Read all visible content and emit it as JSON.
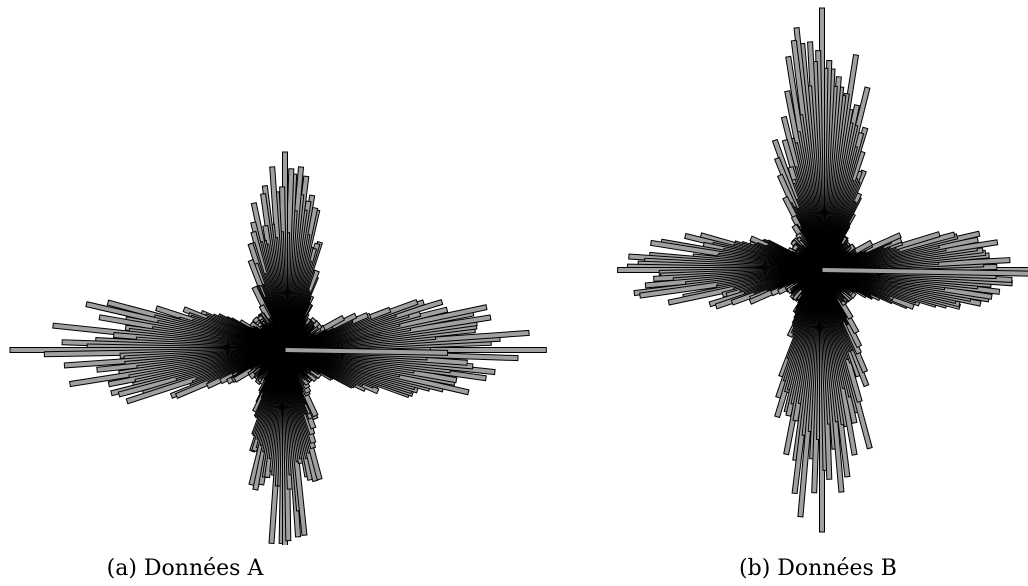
{
  "chart_data": [
    {
      "type": "rose",
      "caption": "(a) Données A",
      "bar_count": 360,
      "bar_fill": "#a0a0a0",
      "bar_edge": "#000000",
      "lobes": [
        {
          "direction": "left",
          "relative_length": 1.0
        },
        {
          "direction": "right",
          "relative_length": 0.95
        },
        {
          "direction": "up",
          "relative_length": 0.72
        },
        {
          "direction": "down",
          "relative_length": 0.74
        }
      ]
    },
    {
      "type": "rose",
      "caption": "(b) Données B",
      "bar_count": 360,
      "bar_fill": "#a0a0a0",
      "bar_edge": "#000000",
      "lobes": [
        {
          "direction": "up",
          "relative_length": 1.0
        },
        {
          "direction": "down",
          "relative_length": 1.0
        },
        {
          "direction": "left",
          "relative_length": 0.78
        },
        {
          "direction": "right",
          "relative_length": 0.8
        }
      ]
    }
  ]
}
